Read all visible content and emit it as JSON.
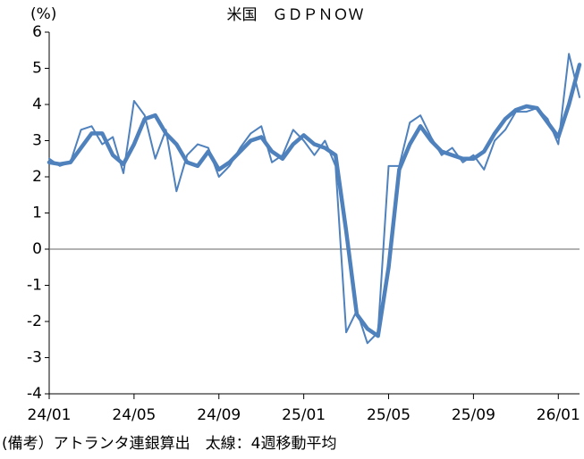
{
  "chart_data": {
    "type": "line",
    "title": "米国　ＧＤＰＮＯＷ",
    "y_label": "(%)",
    "note": "(備考）アトランタ連銀算出　太線：4週移動平均",
    "x": [
      0,
      0.5,
      1,
      1.5,
      2,
      2.5,
      3,
      3.5,
      4,
      4.5,
      5,
      5.5,
      6,
      6.5,
      7,
      7.5,
      8,
      8.5,
      9,
      9.5,
      10,
      10.5,
      11,
      11.5,
      12,
      12.5,
      13,
      13.5,
      14,
      14.5,
      15,
      15.5,
      16,
      16.5,
      17,
      17.5,
      18,
      18.5,
      19,
      19.5,
      20,
      20.5,
      21,
      21.5,
      22,
      22.5,
      23,
      23.5,
      24,
      24.5,
      25
    ],
    "series": [
      {
        "color": "#4f81bd",
        "line_width": 2,
        "values": [
          2.5,
          2.3,
          2.4,
          3.3,
          3.4,
          2.9,
          3.1,
          2.1,
          4.1,
          3.7,
          2.5,
          3.3,
          1.6,
          2.6,
          2.9,
          2.8,
          2.0,
          2.3,
          2.8,
          3.2,
          3.4,
          2.4,
          2.6,
          3.3,
          3.0,
          2.6,
          3.0,
          2.3,
          -2.3,
          -1.7,
          -2.6,
          -2.3,
          2.3,
          2.3,
          3.5,
          3.7,
          3.1,
          2.6,
          2.8,
          2.4,
          2.6,
          2.2,
          3.0,
          3.3,
          3.8,
          3.8,
          3.9,
          3.6,
          2.9,
          5.4,
          4.2
        ]
      },
      {
        "color": "#4f81bd",
        "line_width": 4.5,
        "values": [
          2.4,
          2.35,
          2.4,
          2.8,
          3.2,
          3.2,
          2.6,
          2.35,
          2.9,
          3.6,
          3.7,
          3.2,
          2.9,
          2.4,
          2.3,
          2.7,
          2.2,
          2.4,
          2.7,
          3.0,
          3.1,
          2.7,
          2.5,
          2.9,
          3.15,
          2.9,
          2.8,
          2.6,
          0.5,
          -1.8,
          -2.2,
          -2.4,
          -0.5,
          2.2,
          2.9,
          3.4,
          3.0,
          2.7,
          2.6,
          2.5,
          2.5,
          2.7,
          3.2,
          3.6,
          3.85,
          3.95,
          3.9,
          3.5,
          3.1,
          4.0,
          5.1
        ]
      }
    ],
    "xlim": [
      0,
      25
    ],
    "xticks": [
      {
        "value": 0,
        "label": "24/01"
      },
      {
        "value": 4,
        "label": "24/05"
      },
      {
        "value": 8,
        "label": "24/09"
      },
      {
        "value": 12,
        "label": "25/01"
      },
      {
        "value": 16,
        "label": "25/05"
      },
      {
        "value": 20,
        "label": "25/09"
      },
      {
        "value": 24,
        "label": "26/01"
      }
    ],
    "ylim": [
      -4,
      6
    ],
    "yticks": [
      -4,
      -3,
      -2,
      -1,
      0,
      1,
      2,
      3,
      4,
      5,
      6
    ]
  }
}
